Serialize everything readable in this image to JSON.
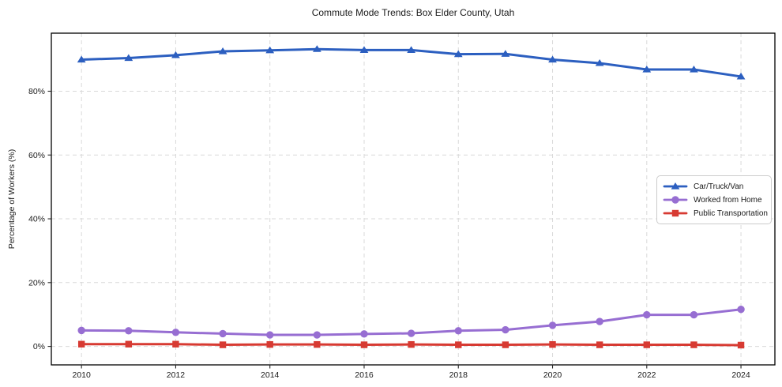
{
  "chart_data": {
    "type": "line",
    "title": "Commute Mode Trends: Box Elder County, Utah",
    "xlabel": "",
    "ylabel": "Percentage of Workers (%)",
    "x": [
      2010,
      2011,
      2012,
      2013,
      2014,
      2015,
      2016,
      2017,
      2018,
      2019,
      2020,
      2021,
      2022,
      2023,
      2024
    ],
    "x_ticks": [
      2010,
      2012,
      2014,
      2016,
      2018,
      2020,
      2022,
      2024
    ],
    "x_tick_labels": [
      "2010",
      "2012",
      "2014",
      "2016",
      "2018",
      "2020",
      "2022",
      "2024"
    ],
    "y_ticks": [
      0,
      20,
      40,
      60,
      80
    ],
    "y_tick_labels": [
      "0%",
      "20%",
      "40%",
      "60%",
      "80%"
    ],
    "xlim": [
      2009.36,
      2024.72
    ],
    "ylim": [
      -5.8,
      98.2
    ],
    "grid": true,
    "legend_position": "center-right",
    "series": [
      {
        "name": "Car/Truck/Van",
        "marker": "triangle",
        "color": "#2c5fc0",
        "values": [
          89.9,
          90.4,
          91.3,
          92.5,
          92.8,
          93.2,
          92.9,
          92.9,
          91.6,
          91.7,
          89.9,
          88.8,
          86.8,
          86.8,
          84.6
        ]
      },
      {
        "name": "Worked from Home",
        "marker": "circle",
        "color": "#976ed2",
        "values": [
          5.0,
          4.9,
          4.4,
          4.0,
          3.6,
          3.6,
          3.9,
          4.1,
          4.9,
          5.2,
          6.6,
          7.8,
          9.9,
          9.9,
          11.6
        ]
      },
      {
        "name": "Public Transportation",
        "marker": "square",
        "color": "#d73a32",
        "values": [
          0.7,
          0.7,
          0.7,
          0.5,
          0.6,
          0.6,
          0.5,
          0.6,
          0.5,
          0.5,
          0.6,
          0.5,
          0.5,
          0.5,
          0.4
        ]
      }
    ]
  },
  "colors": {
    "background": "#ffffff",
    "grid": "#d9d9d9",
    "axis": "#000000",
    "tick": "#262626",
    "text": "#1a1a1a",
    "legend_border": "#cccccc"
  }
}
